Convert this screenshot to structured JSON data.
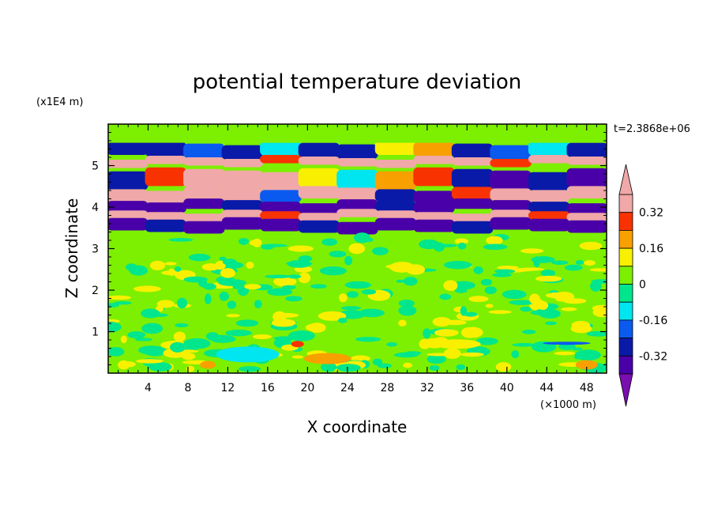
{
  "chart_data": {
    "type": "heatmap",
    "title": "potential temperature deviation",
    "xlabel": "X coordinate",
    "ylabel": "Z coordinate",
    "x_unit": "(×1000 m)",
    "y_unit": "(x1E4 m)",
    "time_label": "t=2.3868e+06",
    "xlim": [
      0,
      50
    ],
    "ylim": [
      0,
      6
    ],
    "x_ticks": [
      4,
      8,
      12,
      16,
      20,
      24,
      28,
      32,
      36,
      40,
      44,
      48
    ],
    "y_ticks": [
      1,
      2,
      3,
      4,
      5
    ],
    "x_tick_labels": [
      "4",
      "8",
      "12",
      "16",
      "20",
      "24",
      "28",
      "32",
      "36",
      "40",
      "44",
      "48"
    ],
    "y_tick_labels": [
      "1",
      "2",
      "3",
      "4",
      "5"
    ],
    "colorbar": {
      "levels": [
        -0.4,
        -0.32,
        -0.24,
        -0.16,
        -0.08,
        0,
        0.08,
        0.16,
        0.24,
        0.32,
        0.4
      ],
      "labels": [
        "0.32",
        "0.16",
        "0",
        "-0.16",
        "-0.32"
      ],
      "label_values": [
        0.32,
        0.16,
        0,
        -0.16,
        -0.32
      ],
      "colors": [
        "#7a0eb0",
        "#4a00a8",
        "#0a1aa8",
        "#0a5af0",
        "#00e6f0",
        "#00e68c",
        "#7cf000",
        "#f8f000",
        "#f8a000",
        "#f83200",
        "#f0a8a8"
      ],
      "extend": "both"
    },
    "bands": [
      {
        "z": [
          5.2,
          5.55
        ],
        "values": [
          -0.3,
          -0.28,
          -0.2,
          -0.32,
          -0.1,
          -0.25,
          -0.3,
          0.15,
          0.2,
          -0.28,
          -0.2,
          -0.1,
          -0.3
        ]
      },
      {
        "z": [
          5.0,
          5.2
        ],
        "values": [
          0.4,
          0.4,
          0.36,
          0.4,
          0.3,
          0.38,
          0.4,
          0.36,
          0.4,
          0.4,
          0.3,
          0.4,
          0.4
        ]
      },
      {
        "z": [
          4.45,
          4.9
        ],
        "values": [
          -0.3,
          0.3,
          0.4,
          0.42,
          0.35,
          0.1,
          -0.1,
          0.2,
          0.3,
          -0.3,
          -0.35,
          -0.3,
          -0.35
        ]
      },
      {
        "z": [
          4.15,
          4.45
        ],
        "values": [
          0.36,
          0.4,
          0.4,
          0.38,
          -0.2,
          0.4,
          0.36,
          -0.32,
          -0.4,
          0.3,
          0.4,
          0.36,
          0.4
        ]
      },
      {
        "z": [
          3.9,
          4.15
        ],
        "values": [
          -0.4,
          -0.36,
          -0.4,
          -0.32,
          -0.4,
          -0.36,
          -0.4,
          -0.3,
          -0.4,
          -0.36,
          -0.4,
          -0.32,
          -0.4
        ]
      },
      {
        "z": [
          3.7,
          3.9
        ],
        "values": [
          0.4,
          0.36,
          0.4,
          0.42,
          0.3,
          0.4,
          0.38,
          0.42,
          0.4,
          0.36,
          0.4,
          0.3,
          0.4
        ]
      },
      {
        "z": [
          3.4,
          3.7
        ],
        "values": [
          -0.38,
          -0.32,
          -0.38,
          -0.34,
          -0.38,
          -0.3,
          -0.38,
          -0.36,
          -0.38,
          -0.32,
          -0.38,
          -0.34,
          -0.38
        ]
      },
      {
        "z": [
          0.0,
          3.4
        ],
        "values": [
          0.02,
          0.04,
          0.0,
          0.05,
          0.03,
          0.06,
          0.02,
          0.04,
          0.01,
          0.05,
          0.03,
          0.06,
          0.02
        ]
      }
    ]
  }
}
